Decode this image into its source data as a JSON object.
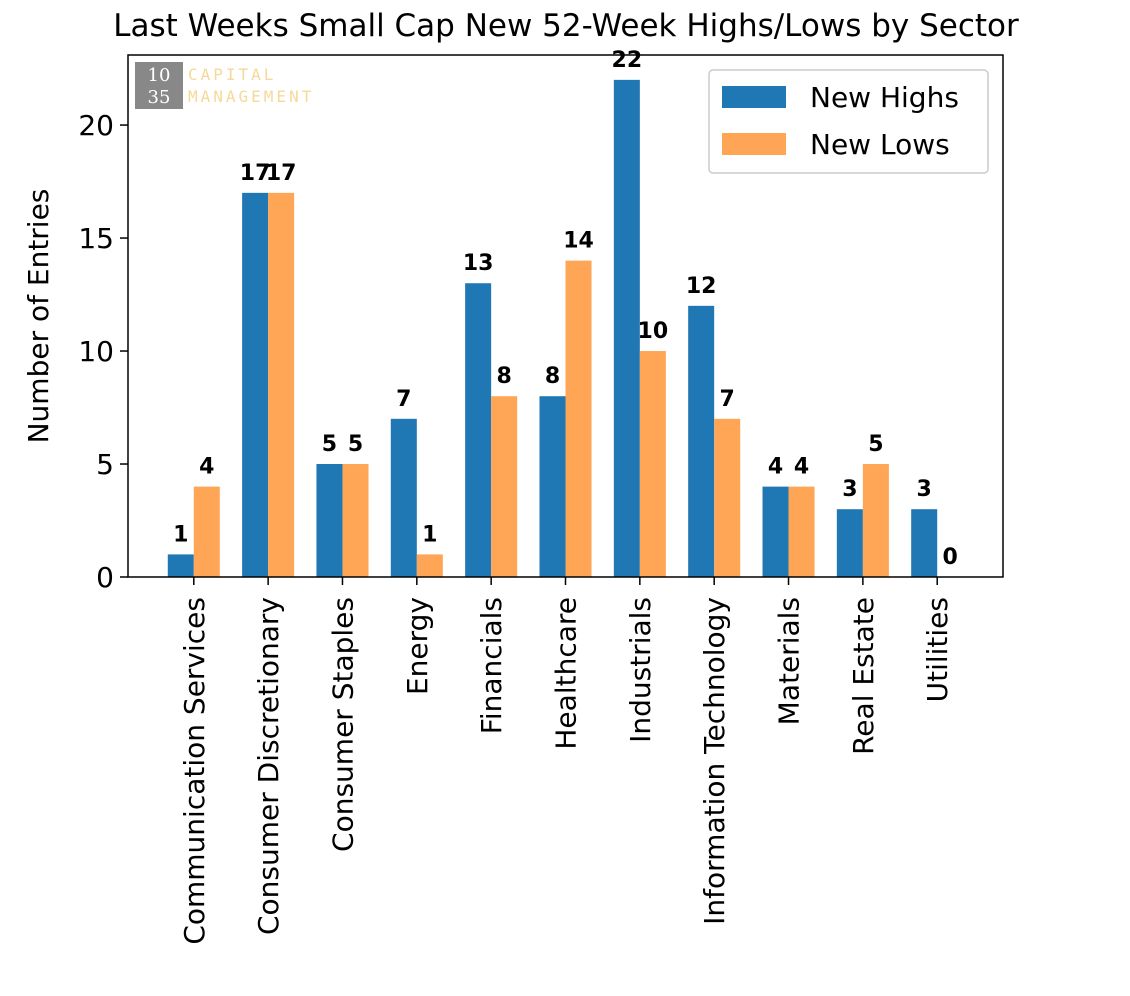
{
  "chart_data": {
    "type": "bar",
    "title": "Last Weeks Small Cap New 52-Week Highs/Lows by Sector",
    "y_label": "Number of Entries",
    "categories": [
      "Communication Services",
      "Consumer Discretionary",
      "Consumer Staples",
      "Energy",
      "Financials",
      "Healthcare",
      "Industrials",
      "Information Technology",
      "Materials",
      "Real Estate",
      "Utilities"
    ],
    "series": [
      {
        "name": "New Highs",
        "color": "#1f77b4",
        "values": [
          1,
          17,
          5,
          7,
          13,
          8,
          22,
          12,
          4,
          3,
          3
        ]
      },
      {
        "name": "New Lows",
        "color": "#ffa556",
        "values": [
          4,
          17,
          5,
          1,
          8,
          14,
          10,
          7,
          4,
          5,
          0
        ]
      }
    ],
    "ylim": [
      0,
      23.1
    ],
    "yticks": [
      0,
      5,
      10,
      15,
      20
    ],
    "legend": "upper right",
    "watermark": {
      "logo": [
        "10",
        "35"
      ],
      "text": [
        "CAPITAL",
        "MANAGEMENT"
      ]
    }
  }
}
